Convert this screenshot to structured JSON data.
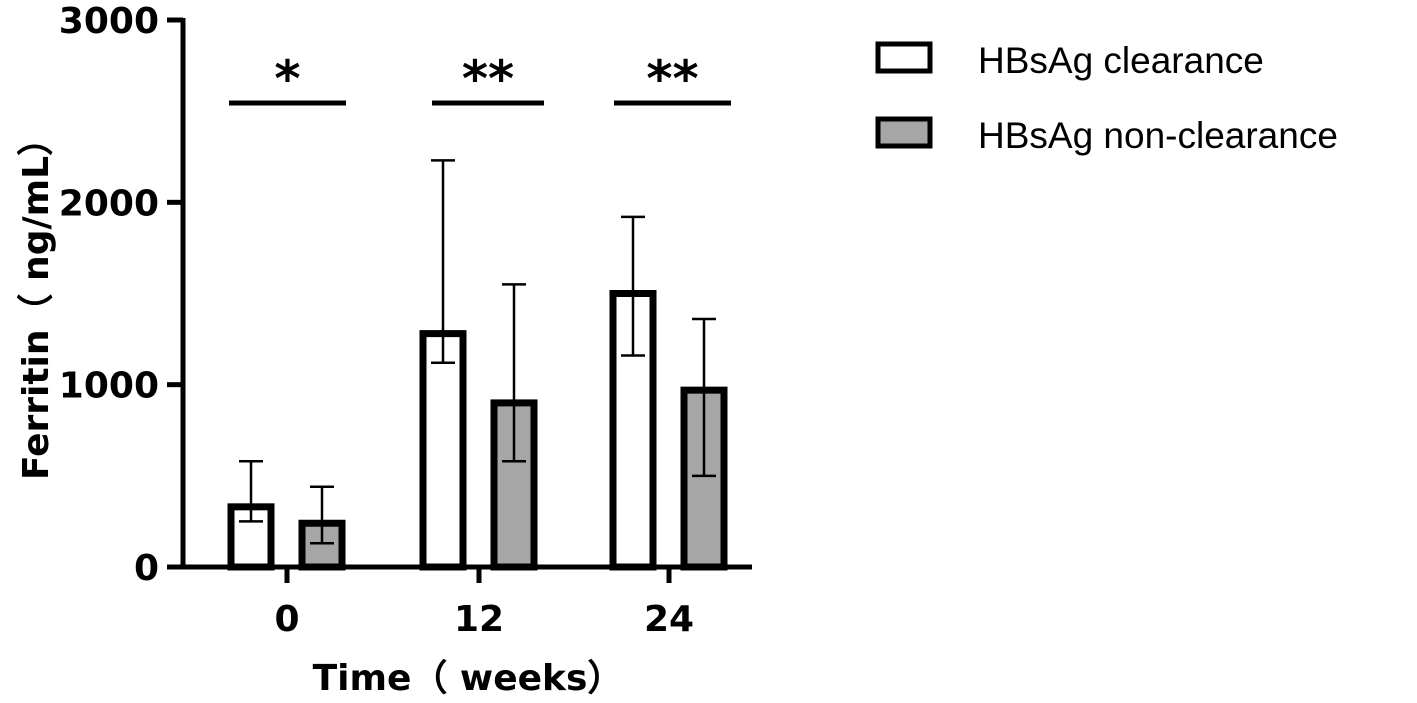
{
  "chart_data": {
    "type": "bar",
    "xlabel": "Time（ weeks）",
    "ylabel": "Ferritin（ ng/mL）",
    "ylim": [
      0,
      3000
    ],
    "yticks": [
      0,
      1000,
      2000,
      3000
    ],
    "ytick_labels": [
      "0",
      "1000",
      "2000",
      "3000"
    ],
    "categories": [
      "0",
      "12",
      "24"
    ],
    "series": [
      {
        "name": "HBsAg clearance",
        "color": "#ffffff",
        "values": [
          330,
          1280,
          1500
        ],
        "err_low": [
          250,
          1120,
          1160
        ],
        "err_high": [
          580,
          2230,
          1920
        ]
      },
      {
        "name": "HBsAg non-clearance",
        "color": "#a6a6a6",
        "values": [
          240,
          900,
          970
        ],
        "err_low": [
          130,
          580,
          500
        ],
        "err_high": [
          440,
          1550,
          1360
        ]
      }
    ],
    "significance": [
      "*",
      "**",
      "**"
    ],
    "legend_position": "top-right",
    "grid": false
  }
}
